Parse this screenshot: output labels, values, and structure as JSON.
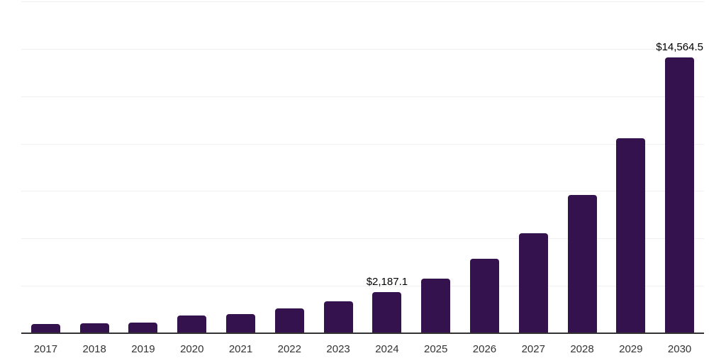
{
  "chart_data": {
    "type": "bar",
    "title": "",
    "xlabel": "",
    "ylabel": "",
    "categories": [
      "2017",
      "2018",
      "2019",
      "2020",
      "2021",
      "2022",
      "2023",
      "2024",
      "2025",
      "2026",
      "2027",
      "2028",
      "2029",
      "2030"
    ],
    "values": [
      480,
      515,
      550,
      950,
      1020,
      1300,
      1680,
      2187.1,
      2895,
      3915,
      5265,
      7285,
      10275,
      14564.5
    ],
    "data_labels": [
      null,
      null,
      null,
      null,
      null,
      null,
      null,
      "$2,187.1",
      null,
      null,
      null,
      null,
      null,
      "$14,564.5"
    ],
    "ylim": [
      0,
      17500
    ],
    "gridline_step": 2500,
    "gridlines_values": [
      2500,
      5000,
      7500,
      10000,
      12500,
      15000,
      17500
    ],
    "y_tick_labels": "none",
    "legend": "none",
    "grid": "horizontal-only",
    "colors": {
      "bar_fill": "#33124E",
      "axis_line": "#333333",
      "gridline": "#F0F0F0",
      "value_label": "#000000",
      "tick_label": "#333333",
      "background": "#FFFFFF"
    }
  }
}
